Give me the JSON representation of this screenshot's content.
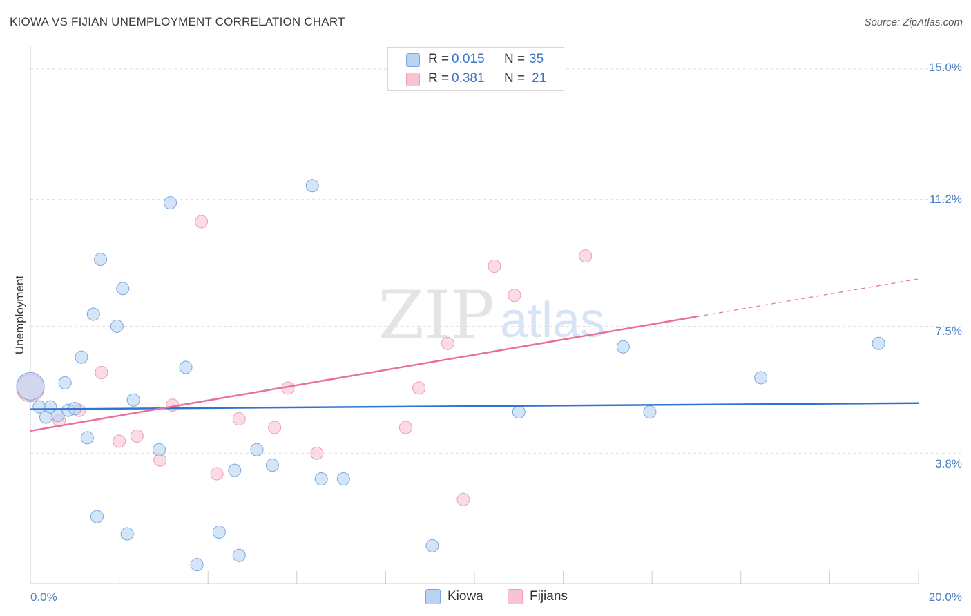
{
  "title": "KIOWA VS FIJIAN UNEMPLOYMENT CORRELATION CHART",
  "source": "Source: ZipAtlas.com",
  "watermark": {
    "zip": "ZIP",
    "atlas": "atlas"
  },
  "legend": {
    "rows": [
      {
        "r_label": "R =",
        "r_value": "0.015",
        "n_label": "N =",
        "n_value": "35"
      },
      {
        "r_label": "R =",
        "r_value": "0.381",
        "n_label": "N =",
        "n_value": "21"
      }
    ]
  },
  "bottom_legend": [
    {
      "label": "Kiowa"
    },
    {
      "label": "Fijians"
    }
  ],
  "colors": {
    "kiowa_fill": "#b9d3f3",
    "kiowa_stroke": "#7aa7df",
    "kiowa_line": "#2f74d0",
    "fijian_fill": "#f8c4d4",
    "fijian_stroke": "#ee9bb6",
    "fijian_line": "#e8709a",
    "grid": "#dedede",
    "axis_text": "#4a7fc8"
  },
  "chart_data": {
    "type": "scatter",
    "title": "KIOWA VS FIJIAN UNEMPLOYMENT CORRELATION CHART",
    "xlabel": "",
    "ylabel": "Unemployment",
    "xlim": [
      0,
      20
    ],
    "ylim": [
      0,
      15.4
    ],
    "x_tick_labels": [
      "0.0%",
      "20.0%"
    ],
    "y_ticks": [
      3.8,
      7.5,
      11.2,
      15.0
    ],
    "y_tick_labels": [
      "3.8%",
      "7.5%",
      "11.2%",
      "15.0%"
    ],
    "series": [
      {
        "name": "Kiowa",
        "R": 0.015,
        "N": 35,
        "trend": {
          "x": [
            0,
            20
          ],
          "y": [
            5.08,
            5.26
          ]
        },
        "points": [
          [
            0.0,
            5.75
          ],
          [
            0.2,
            5.15
          ],
          [
            0.35,
            4.85
          ],
          [
            0.45,
            5.15
          ],
          [
            0.62,
            4.9
          ],
          [
            0.78,
            5.85
          ],
          [
            0.85,
            5.05
          ],
          [
            1.0,
            5.1
          ],
          [
            1.15,
            6.6
          ],
          [
            1.28,
            4.25
          ],
          [
            1.42,
            7.85
          ],
          [
            1.5,
            1.95
          ],
          [
            1.58,
            9.45
          ],
          [
            1.95,
            7.5
          ],
          [
            2.08,
            8.6
          ],
          [
            2.18,
            1.45
          ],
          [
            2.32,
            5.35
          ],
          [
            2.9,
            3.9
          ],
          [
            3.15,
            11.1
          ],
          [
            3.5,
            6.3
          ],
          [
            3.75,
            0.55
          ],
          [
            4.25,
            1.5
          ],
          [
            4.6,
            3.3
          ],
          [
            4.7,
            0.82
          ],
          [
            5.1,
            3.9
          ],
          [
            5.45,
            3.45
          ],
          [
            6.35,
            11.6
          ],
          [
            6.55,
            3.05
          ],
          [
            7.05,
            3.05
          ],
          [
            9.05,
            1.1
          ],
          [
            11.0,
            5.0
          ],
          [
            13.35,
            6.9
          ],
          [
            13.95,
            5.0
          ],
          [
            16.45,
            6.0
          ],
          [
            19.1,
            7.0
          ]
        ]
      },
      {
        "name": "Fijians",
        "R": 0.381,
        "N": 21,
        "trend": {
          "x": [
            0,
            15.0
          ],
          "y": [
            4.45,
            7.78
          ]
        },
        "trend_extension": {
          "x": [
            15.0,
            20.0
          ],
          "y": [
            7.78,
            8.88
          ]
        },
        "points": [
          [
            0.0,
            5.7
          ],
          [
            0.65,
            4.75
          ],
          [
            1.1,
            5.05
          ],
          [
            1.6,
            6.15
          ],
          [
            2.0,
            4.15
          ],
          [
            2.4,
            4.3
          ],
          [
            2.92,
            3.6
          ],
          [
            3.2,
            5.2
          ],
          [
            3.85,
            10.55
          ],
          [
            4.2,
            3.2
          ],
          [
            4.7,
            4.8
          ],
          [
            5.5,
            4.55
          ],
          [
            5.8,
            5.7
          ],
          [
            6.45,
            3.8
          ],
          [
            8.45,
            4.55
          ],
          [
            8.75,
            5.7
          ],
          [
            9.4,
            7.0
          ],
          [
            9.75,
            2.45
          ],
          [
            10.45,
            9.25
          ],
          [
            10.9,
            8.4
          ],
          [
            12.5,
            9.55
          ]
        ]
      }
    ]
  }
}
